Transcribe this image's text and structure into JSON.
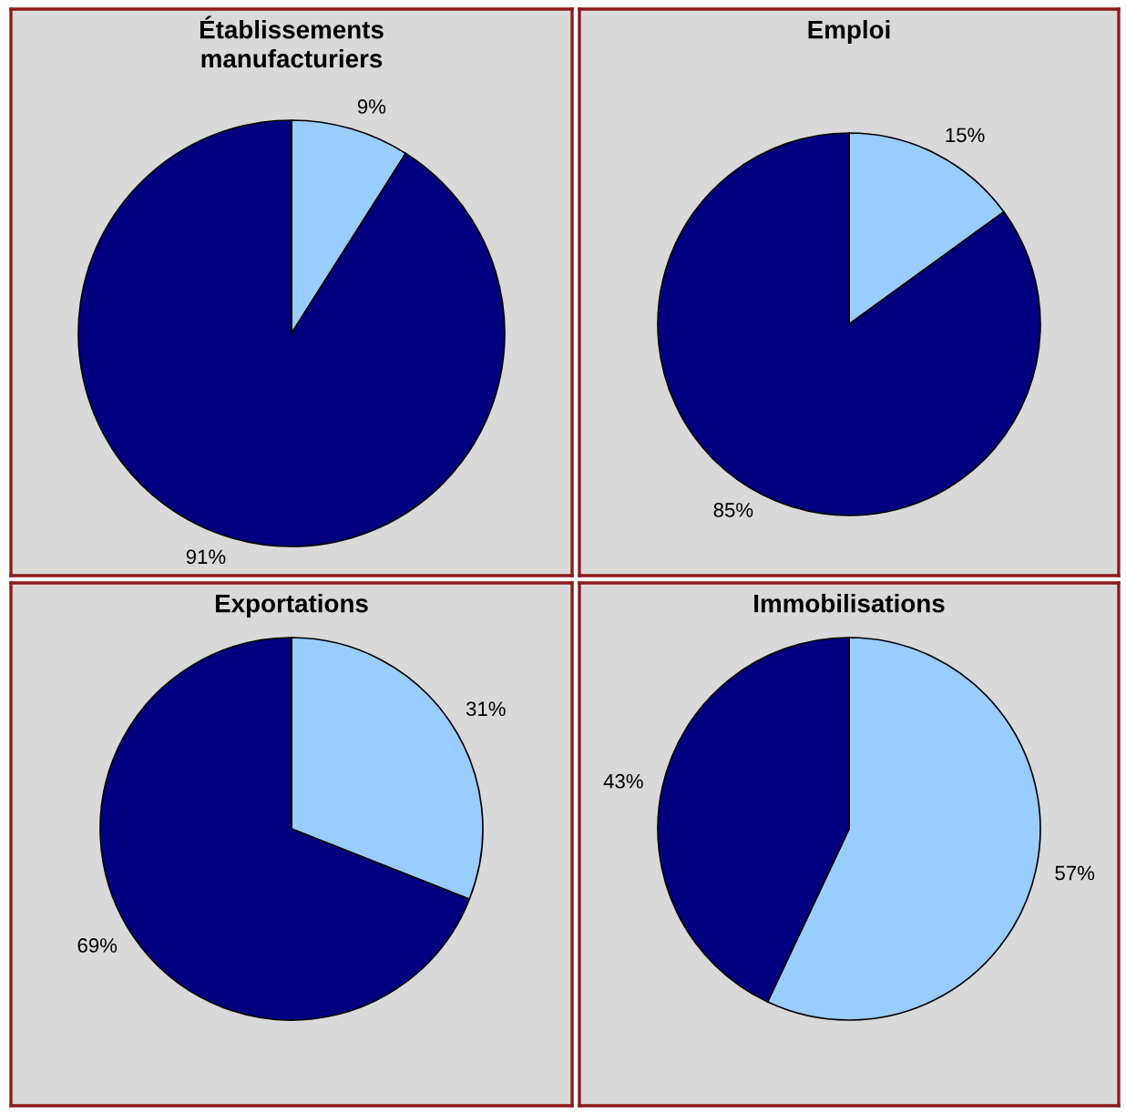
{
  "chart_data": [
    {
      "type": "pie",
      "title": "Établissements\nmanufacturiers",
      "categories": [
        null,
        null
      ],
      "values": [
        9,
        91
      ],
      "colors": [
        "#99ccff",
        "#000080"
      ],
      "data_labels": true,
      "value_labels": [
        "9%",
        "91%"
      ]
    },
    {
      "type": "pie",
      "title": "Emploi",
      "categories": [
        null,
        null
      ],
      "values": [
        15,
        85
      ],
      "colors": [
        "#99ccff",
        "#000080"
      ],
      "data_labels": true,
      "value_labels": [
        "15%",
        "85%"
      ]
    },
    {
      "type": "pie",
      "title": "Exportations",
      "categories": [
        null,
        null
      ],
      "values": [
        31,
        69
      ],
      "colors": [
        "#99ccff",
        "#000080"
      ],
      "data_labels": true,
      "value_labels": [
        "31%",
        "69%"
      ]
    },
    {
      "type": "pie",
      "title": "Immobilisations",
      "categories": [
        null,
        null
      ],
      "values": [
        57,
        43
      ],
      "colors": [
        "#99ccff",
        "#000080"
      ],
      "data_labels": true,
      "value_labels": [
        "57%",
        "43%"
      ]
    }
  ]
}
